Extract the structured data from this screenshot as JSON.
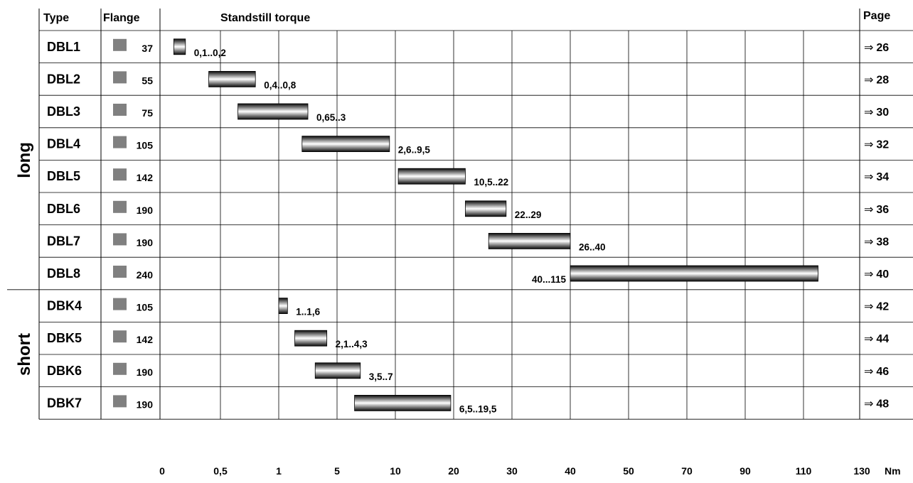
{
  "header": {
    "type": "Type",
    "flange": "Flange",
    "title": "Standstill torque",
    "page": "Page"
  },
  "groups": [
    {
      "label": "long",
      "rows": 8
    },
    {
      "label": "short",
      "rows": 4
    }
  ],
  "page_arrow": "⇒",
  "colors": {
    "flange_square": "#808080",
    "bar_dark": "#0a0a0a",
    "bar_light": "#ffffff",
    "grid": "#000000"
  },
  "chart_data": {
    "type": "bar",
    "orientation": "horizontal",
    "title": "Standstill torque",
    "unit": "Nm",
    "x_ticks": [
      "0",
      "0,5",
      "1",
      "5",
      "10",
      "20",
      "30",
      "40",
      "50",
      "70",
      "90",
      "110",
      "130"
    ],
    "x_tick_values": [
      0,
      0.5,
      1,
      5,
      10,
      20,
      30,
      40,
      50,
      70,
      90,
      110,
      130
    ],
    "axis_scale": "piecewise (equal spacing per tick)",
    "grid": true,
    "rows": [
      {
        "type": "DBL1",
        "flange": "37",
        "min": 0.1,
        "max": 0.2,
        "label": "0,1..0,2",
        "page": "26"
      },
      {
        "type": "DBL2",
        "flange": "55",
        "min": 0.4,
        "max": 0.8,
        "label": "0,4..0,8",
        "page": "28"
      },
      {
        "type": "DBL3",
        "flange": "75",
        "min": 0.65,
        "max": 3,
        "label": "0,65..3",
        "page": "30"
      },
      {
        "type": "DBL4",
        "flange": "105",
        "min": 2.6,
        "max": 9.5,
        "label": "2,6..9,5",
        "page": "32"
      },
      {
        "type": "DBL5",
        "flange": "142",
        "min": 10.5,
        "max": 22,
        "label": "10,5..22",
        "page": "34"
      },
      {
        "type": "DBL6",
        "flange": "190",
        "min": 22,
        "max": 29,
        "label": "22..29",
        "page": "36"
      },
      {
        "type": "DBL7",
        "flange": "190",
        "min": 26,
        "max": 40,
        "label": "26..40",
        "page": "38"
      },
      {
        "type": "DBL8",
        "flange": "240",
        "min": 40,
        "max": 115,
        "label": "40...115",
        "page": "40",
        "label_side": "left"
      },
      {
        "type": "DBK4",
        "flange": "105",
        "min": 1,
        "max": 1.6,
        "label": "1..1,6",
        "page": "42"
      },
      {
        "type": "DBK5",
        "flange": "142",
        "min": 2.1,
        "max": 4.3,
        "label": "2,1..4,3",
        "page": "44"
      },
      {
        "type": "DBK6",
        "flange": "190",
        "min": 3.5,
        "max": 7,
        "label": "3,5..7",
        "page": "46"
      },
      {
        "type": "DBK7",
        "flange": "190",
        "min": 6.5,
        "max": 19.5,
        "label": "6,5..19,5",
        "page": "48"
      }
    ]
  }
}
